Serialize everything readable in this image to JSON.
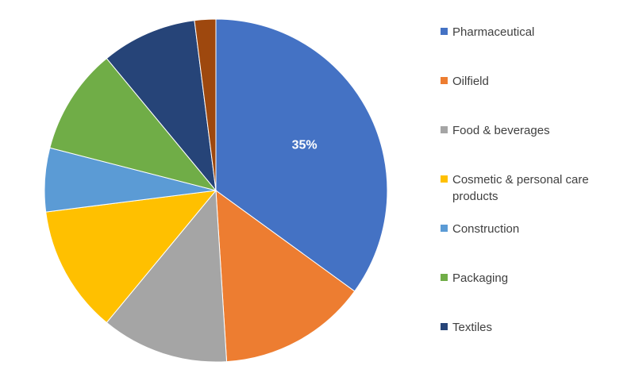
{
  "chart_data": {
    "type": "pie",
    "categories": [
      "Pharmaceutical",
      "Oilfield",
      "Food & beverages",
      "Cosmetic & personal care products",
      "Construction",
      "Packaging",
      "Textiles",
      ""
    ],
    "values": [
      35,
      14,
      12,
      12,
      6,
      10,
      9,
      2
    ],
    "colors": [
      "#4472C4",
      "#ED7D31",
      "#A5A5A5",
      "#FFC000",
      "#5B9BD5",
      "#70AD47",
      "#264478",
      "#9E480E"
    ],
    "data_labels": [
      "35%",
      "",
      "",
      "",
      "",
      "",
      "",
      ""
    ],
    "legend_position": "right",
    "start_angle_deg": 0,
    "direction": "clockwise"
  }
}
